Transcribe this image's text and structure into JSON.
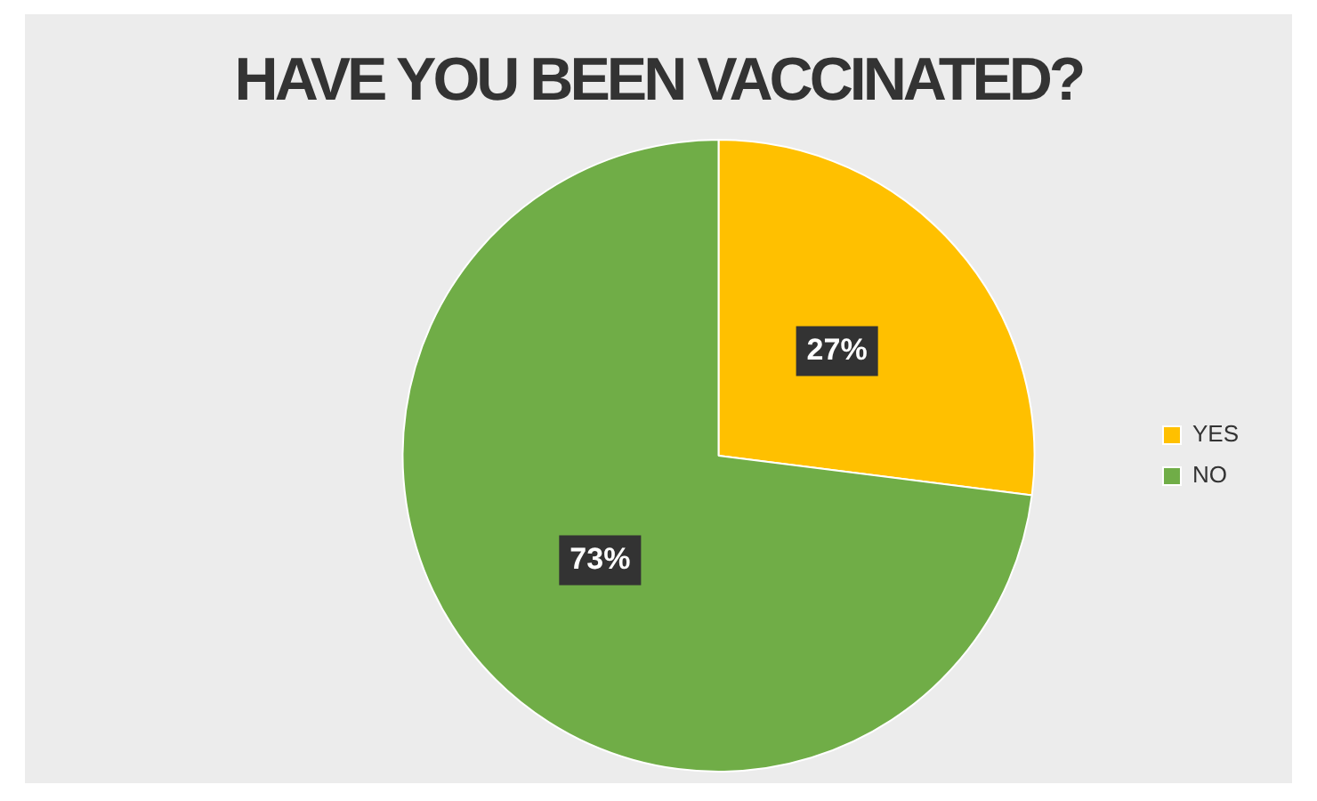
{
  "chart_data": {
    "type": "pie",
    "title": "HAVE YOU BEEN VACCINATED?",
    "categories": [
      "YES",
      "NO"
    ],
    "values": [
      27,
      73
    ],
    "colors": [
      "#ffc000",
      "#70ad47"
    ],
    "value_labels": [
      "27%",
      "73%"
    ],
    "legend": "right"
  }
}
